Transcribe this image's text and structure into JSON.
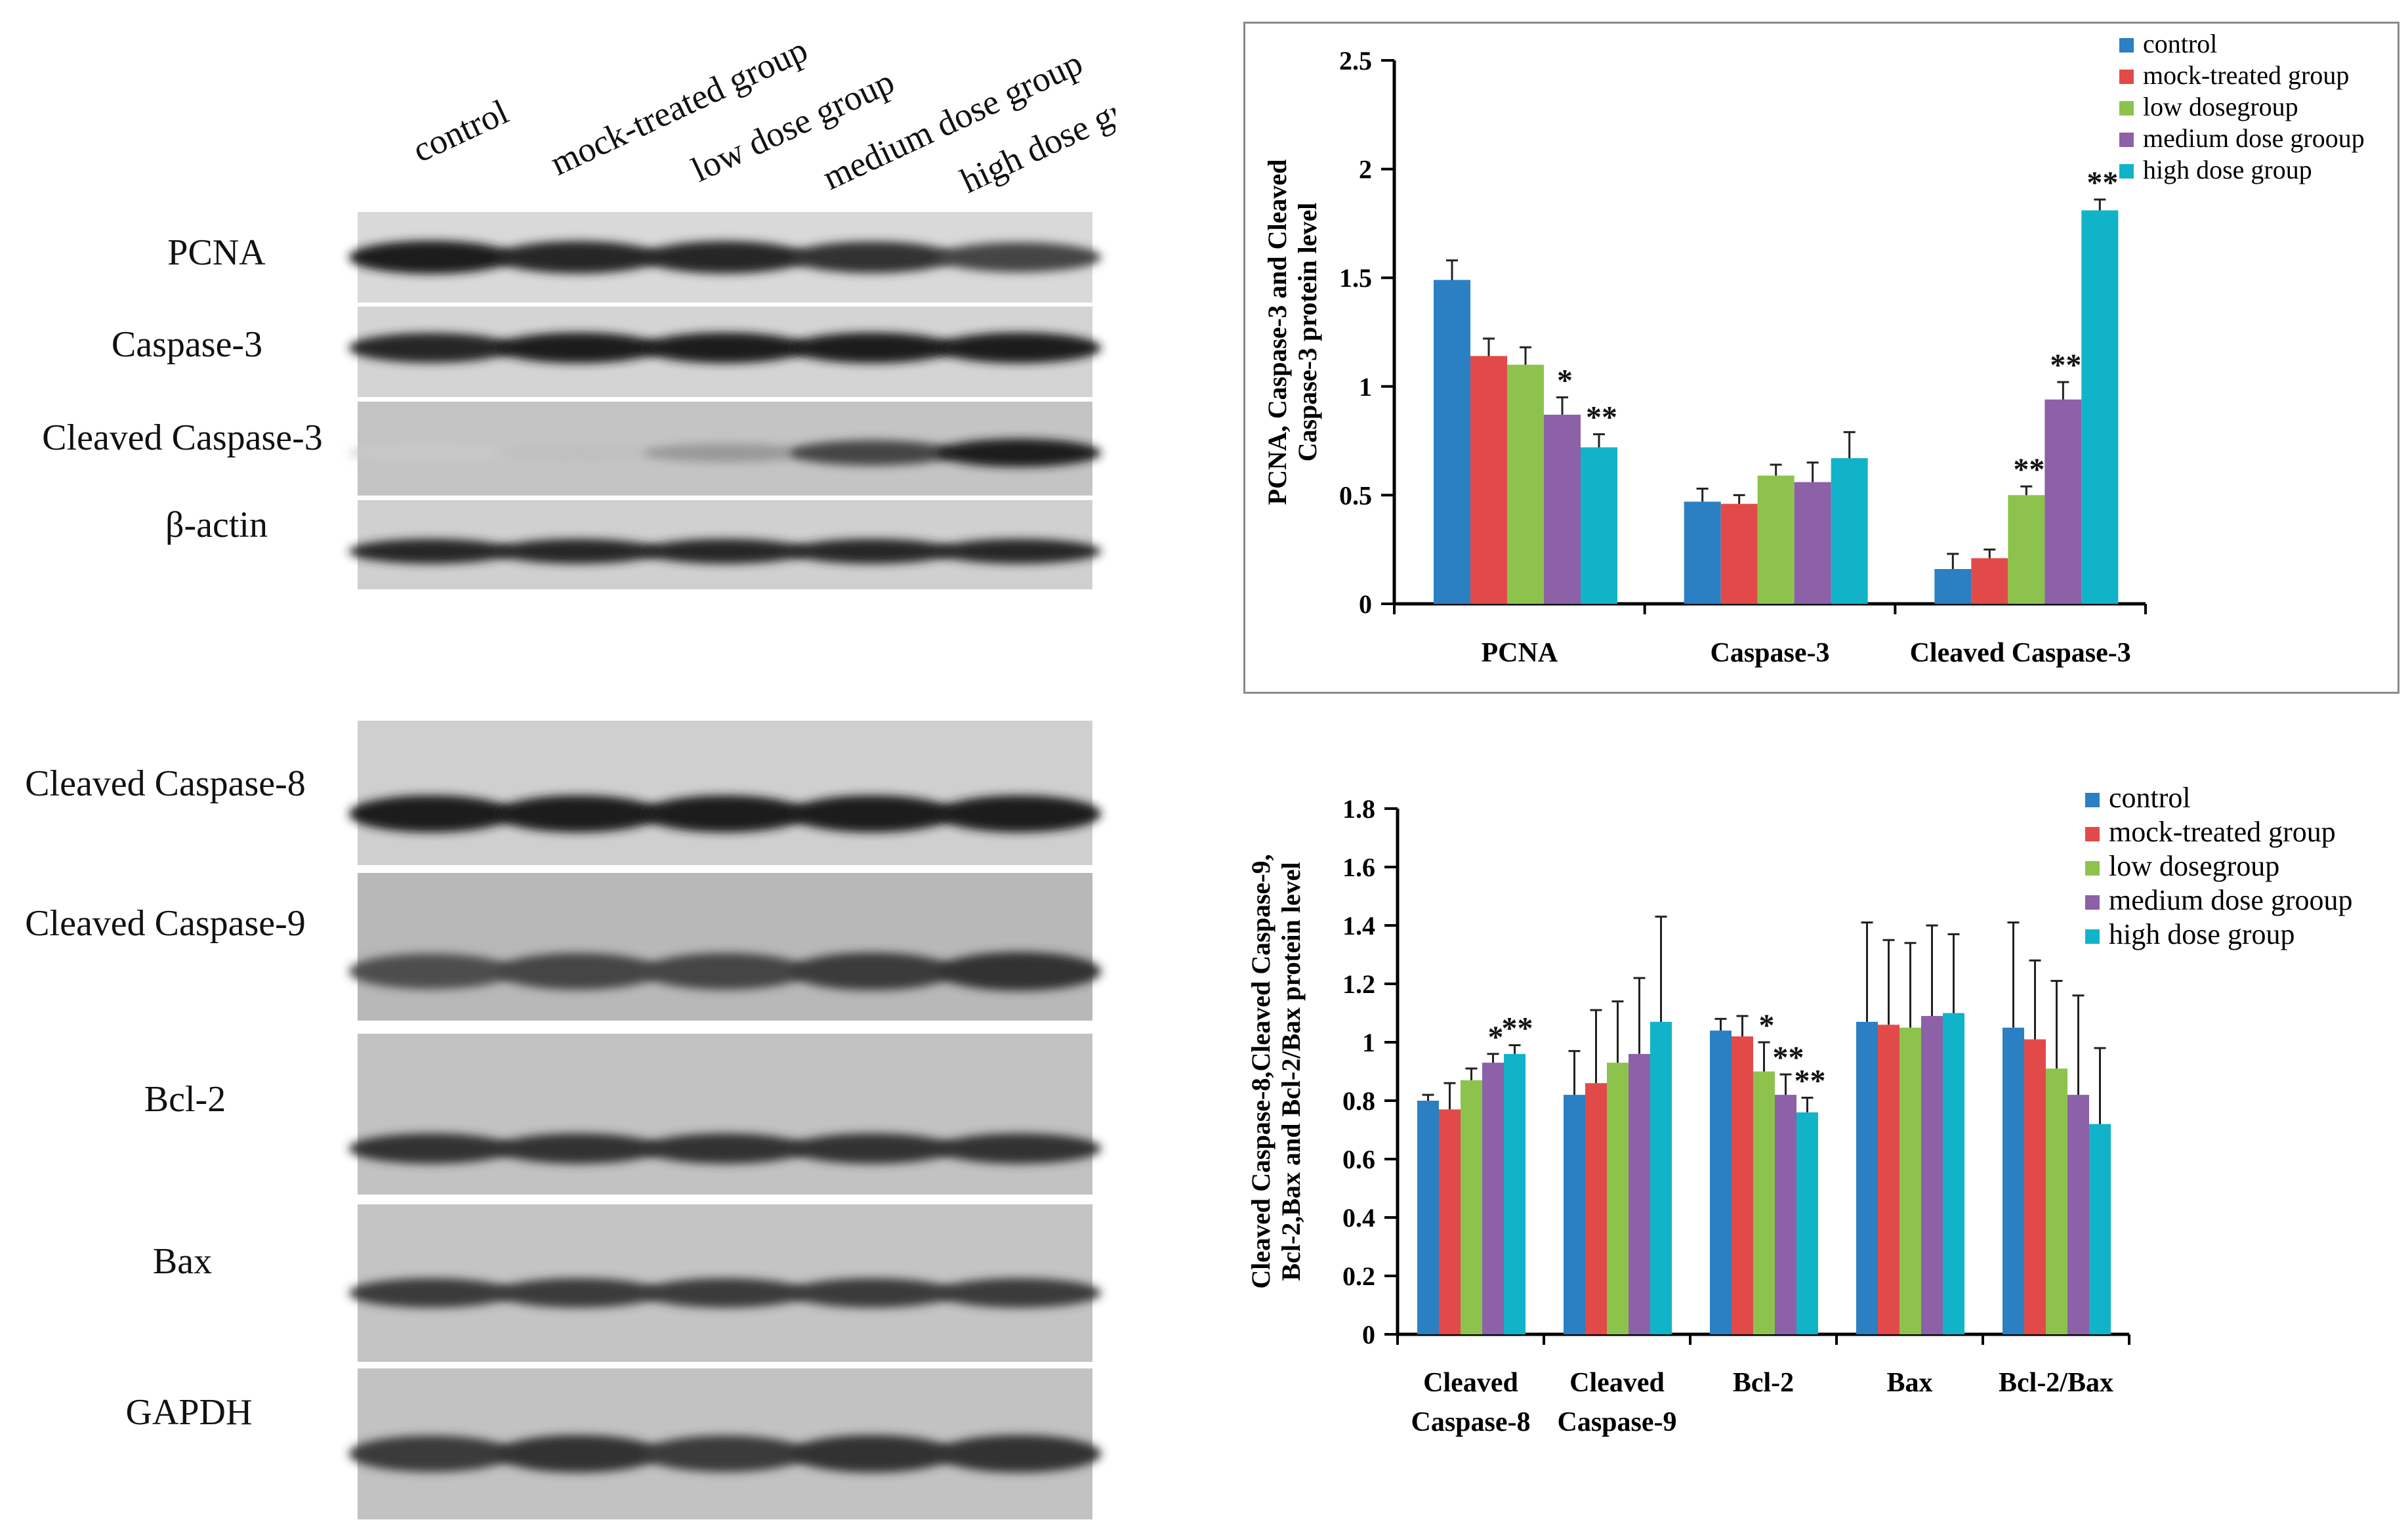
{
  "blot_panel": {
    "lane_labels": [
      "control",
      "mock-treated group",
      "low dose group",
      "medium dose group",
      "high  dose group"
    ],
    "top_rows": [
      "PCNA",
      "Caspase-3",
      "Cleaved Caspase-3",
      "β-actin"
    ],
    "bottom_rows": [
      "Cleaved Caspase-8",
      "Cleaved Caspase-9",
      "Bcl-2",
      "Bax",
      "GAPDH"
    ],
    "band_intensity_top": [
      [
        0.95,
        0.9,
        0.9,
        0.85,
        0.75
      ],
      [
        0.9,
        0.95,
        0.95,
        0.95,
        0.95
      ],
      [
        0.05,
        0.1,
        0.3,
        0.75,
        0.95
      ],
      [
        0.9,
        0.9,
        0.9,
        0.9,
        0.9
      ]
    ],
    "band_intensity_bottom": [
      [
        0.95,
        0.95,
        0.95,
        0.95,
        0.95
      ],
      [
        0.7,
        0.75,
        0.75,
        0.8,
        0.85
      ],
      [
        0.85,
        0.85,
        0.85,
        0.85,
        0.85
      ],
      [
        0.8,
        0.8,
        0.8,
        0.8,
        0.8
      ],
      [
        0.8,
        0.85,
        0.8,
        0.85,
        0.85
      ]
    ]
  },
  "chart_data": [
    {
      "type": "bar",
      "title": "",
      "xlabel": "",
      "ylabel_lines": [
        "PCNA, Caspase-3 and Cleaved",
        "Caspase-3 protein level"
      ],
      "ylim": [
        0,
        2.5
      ],
      "yticks": [
        0,
        0.5,
        1,
        1.5,
        2,
        2.5
      ],
      "ytick_labels": [
        "0",
        "0.5",
        "1",
        "1.5",
        "2",
        "2.5"
      ],
      "grid": false,
      "legend_position": "top-right",
      "categories": [
        "PCNA",
        "Caspase-3",
        "Cleaved Caspase-3"
      ],
      "series": [
        {
          "name": "control",
          "color": "#2b7fc3",
          "values": [
            1.49,
            0.47,
            0.16
          ],
          "errors": [
            0.09,
            0.06,
            0.07
          ],
          "sig": [
            "",
            "",
            ""
          ]
        },
        {
          "name": "mock-treated group",
          "color": "#e24a4a",
          "values": [
            1.14,
            0.46,
            0.21
          ],
          "errors": [
            0.08,
            0.04,
            0.04
          ],
          "sig": [
            "",
            "",
            ""
          ]
        },
        {
          "name": "low dosegroup",
          "color": "#8dc34c",
          "values": [
            1.1,
            0.59,
            0.5
          ],
          "errors": [
            0.08,
            0.05,
            0.04
          ],
          "sig": [
            "",
            "",
            "**"
          ]
        },
        {
          "name": "medium dose grooup",
          "color": "#8c61a8",
          "values": [
            0.87,
            0.56,
            0.94
          ],
          "errors": [
            0.08,
            0.09,
            0.08
          ],
          "sig": [
            "*",
            "",
            "**"
          ]
        },
        {
          "name": "high dose group",
          "color": "#11b3c9",
          "values": [
            0.72,
            0.67,
            1.81
          ],
          "errors": [
            0.06,
            0.12,
            0.05
          ],
          "sig": [
            "**",
            "",
            "**"
          ]
        }
      ]
    },
    {
      "type": "bar",
      "title": "",
      "xlabel": "",
      "ylabel_lines": [
        "Cleaved Caspase-8,Cleaved Caspase-9,",
        "Bcl-2,Bax and Bcl-2/Bax protein level"
      ],
      "ylim": [
        0,
        1.8
      ],
      "yticks": [
        0,
        0.2,
        0.4,
        0.6,
        0.8,
        1,
        1.2,
        1.4,
        1.6,
        1.8
      ],
      "ytick_labels": [
        "0",
        "0.2",
        "0.4",
        "0.6",
        "0.8",
        "1",
        "1.2",
        "1.4",
        "1.6",
        "1.8"
      ],
      "grid": false,
      "legend_position": "top-right",
      "categories": [
        "Cleaved Caspase-8",
        "Cleaved Caspase-9",
        "Bcl-2",
        "Bax",
        "Bcl-2/Bax"
      ],
      "category_label_lines": [
        [
          "Cleaved",
          "Caspase-8"
        ],
        [
          "Cleaved",
          "Caspase-9"
        ],
        [
          "Bcl-2"
        ],
        [
          "Bax"
        ],
        [
          "Bcl-2/Bax"
        ]
      ],
      "series": [
        {
          "name": "control",
          "color": "#2b7fc3",
          "values": [
            0.8,
            0.82,
            1.04,
            1.07,
            1.05
          ],
          "errors": [
            0.02,
            0.15,
            0.04,
            0.34,
            0.36
          ],
          "sig": [
            "",
            "",
            "",
            "",
            ""
          ]
        },
        {
          "name": "mock-treated group",
          "color": "#e24a4a",
          "values": [
            0.77,
            0.86,
            1.02,
            1.06,
            1.01
          ],
          "errors": [
            0.09,
            0.25,
            0.07,
            0.29,
            0.27
          ],
          "sig": [
            "",
            "",
            "",
            "",
            ""
          ]
        },
        {
          "name": "low dosegroup",
          "color": "#8dc34c",
          "values": [
            0.87,
            0.93,
            0.9,
            1.05,
            0.91
          ],
          "errors": [
            0.04,
            0.21,
            0.1,
            0.29,
            0.3
          ],
          "sig": [
            "",
            "",
            "*",
            "",
            ""
          ]
        },
        {
          "name": "medium dose grooup",
          "color": "#8c61a8",
          "values": [
            0.93,
            0.96,
            0.82,
            1.09,
            0.82
          ],
          "errors": [
            0.03,
            0.26,
            0.07,
            0.31,
            0.34
          ],
          "sig": [
            "*",
            "",
            "**",
            "",
            ""
          ]
        },
        {
          "name": "high dose group",
          "color": "#11b3c9",
          "values": [
            0.96,
            1.07,
            0.76,
            1.1,
            0.72
          ],
          "errors": [
            0.03,
            0.36,
            0.05,
            0.27,
            0.26
          ],
          "sig": [
            "**",
            "",
            "**",
            "",
            ""
          ]
        }
      ]
    }
  ]
}
